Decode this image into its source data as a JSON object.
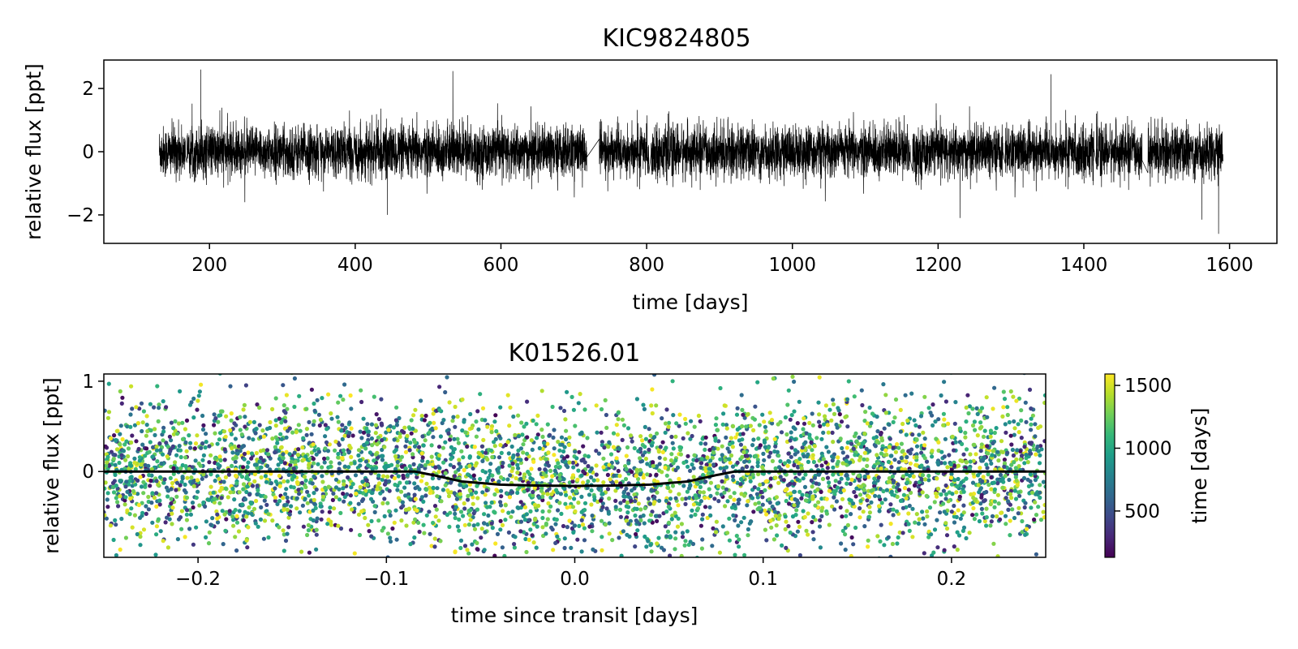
{
  "chart_data": [
    {
      "type": "line",
      "title": "KIC9824805",
      "xlabel": "time [days]",
      "ylabel": "relative flux [ppt]",
      "xlim": [
        55,
        1665
      ],
      "ylim": [
        -2.9,
        2.9
      ],
      "xticks": [
        200,
        400,
        600,
        800,
        1000,
        1200,
        1400,
        1600
      ],
      "xtick_labels": [
        "200",
        "400",
        "600",
        "800",
        "1000",
        "1200",
        "1400",
        "1600"
      ],
      "yticks": [
        -2,
        0,
        2
      ],
      "ytick_labels": [
        "−2",
        "0",
        "2"
      ],
      "line_color": "#000000",
      "observed_segments": [
        {
          "start": 131,
          "end": 167
        },
        {
          "start": 169,
          "end": 350
        },
        {
          "start": 352,
          "end": 397
        },
        {
          "start": 399,
          "end": 718
        },
        {
          "start": 735,
          "end": 803
        },
        {
          "start": 806,
          "end": 1162
        },
        {
          "start": 1165,
          "end": 1289
        },
        {
          "start": 1292,
          "end": 1414
        },
        {
          "start": 1417,
          "end": 1480
        },
        {
          "start": 1488,
          "end": 1591
        }
      ],
      "typical_scatter_ppt": 0.4,
      "notable_points": [
        {
          "x": 188,
          "y": 2.6
        },
        {
          "x": 444,
          "y": -2.0
        },
        {
          "x": 534,
          "y": 2.55
        },
        {
          "x": 1230,
          "y": -2.1
        },
        {
          "x": 1355,
          "y": 2.45
        },
        {
          "x": 1562,
          "y": -2.15
        },
        {
          "x": 1585,
          "y": -2.6
        }
      ]
    },
    {
      "type": "scatter",
      "title": "K01526.01",
      "xlabel": "time since transit [days]",
      "ylabel": "relative flux [ppt]",
      "xlim": [
        -0.25,
        0.25
      ],
      "ylim": [
        -0.95,
        1.08
      ],
      "xticks": [
        -0.2,
        -0.1,
        0.0,
        0.1,
        0.2
      ],
      "xtick_labels": [
        "−0.2",
        "−0.1",
        "0.0",
        "0.1",
        "0.2"
      ],
      "yticks": [
        0,
        1
      ],
      "ytick_labels": [
        "0",
        "1"
      ],
      "point_color_by": "time [days]",
      "point_count": 4500,
      "typical_scatter_ppt": 0.4,
      "transit_model": {
        "color": "#000000",
        "x": [
          -0.25,
          -0.085,
          -0.075,
          -0.06,
          -0.04,
          -0.02,
          0.0,
          0.02,
          0.04,
          0.06,
          0.075,
          0.085,
          0.25
        ],
        "y": [
          0.0,
          0.0,
          -0.04,
          -0.11,
          -0.145,
          -0.155,
          -0.16,
          -0.155,
          -0.145,
          -0.11,
          -0.04,
          0.0,
          0.0
        ]
      },
      "colorbar": {
        "label": "time [days]",
        "range": [
          131,
          1591
        ],
        "ticks": [
          500,
          1000,
          1500
        ],
        "tick_labels": [
          "500",
          "1000",
          "1500"
        ],
        "colormap": [
          "#440154",
          "#482878",
          "#3e4989",
          "#31688e",
          "#26828e",
          "#1f9e89",
          "#35b779",
          "#6ece58",
          "#b5de2b",
          "#fde725"
        ]
      }
    }
  ]
}
